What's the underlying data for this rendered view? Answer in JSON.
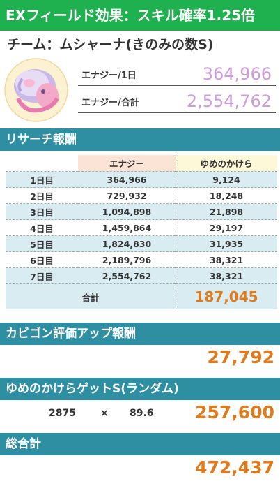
{
  "banner": {
    "text": "EXフィールド効果：スキル確率1.25倍"
  },
  "team": {
    "title": "チーム：ムシャーナ(きのみの数S)"
  },
  "stats": {
    "energy_per_day_label": "エナジー/1日",
    "energy_per_day_value": "364,966",
    "energy_total_label": "エナジー/合計",
    "energy_total_value": "2,554,762"
  },
  "research": {
    "title": "リサーチ報酬",
    "headers": [
      "",
      "エナジー",
      "ゆめのかけら"
    ],
    "rows": [
      {
        "day": "1日目",
        "energy": "364,966",
        "dream": "9,124"
      },
      {
        "day": "2日目",
        "energy": "729,932",
        "dream": "18,248"
      },
      {
        "day": "3日目",
        "energy": "1,094,898",
        "dream": "21,898"
      },
      {
        "day": "4日目",
        "energy": "1,459,864",
        "dream": "29,197"
      },
      {
        "day": "5日目",
        "energy": "1,824,830",
        "dream": "31,935"
      },
      {
        "day": "6日目",
        "energy": "2,189,796",
        "dream": "38,321"
      },
      {
        "day": "7日目",
        "energy": "2,554,762",
        "dream": "38,321"
      }
    ],
    "total_label": "合計",
    "total_value": "187,045"
  },
  "snorlax": {
    "title": "カビゴン評価アップ報酬",
    "value": "27,792"
  },
  "dream_get": {
    "title": "ゆめのかけらゲットS(ランダム)",
    "base": "2875",
    "times": "×",
    "multiplier": "89.6",
    "value": "257,600"
  },
  "grand_total": {
    "title": "総合計",
    "value": "472,437"
  },
  "colors": {
    "banner": "#1fb04f",
    "section": "#2e8fa3",
    "energy_value": "#cf9bdc",
    "reward_value": "#e07a1a"
  }
}
